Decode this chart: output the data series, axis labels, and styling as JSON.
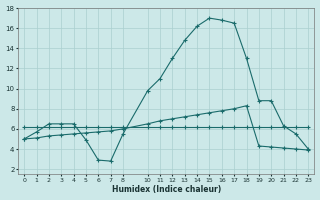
{
  "xlabel": "Humidex (Indice chaleur)",
  "bg_color": "#cce8e8",
  "grid_color": "#aacfcf",
  "line_color": "#1a6b6b",
  "xlim": [
    -0.5,
    23.5
  ],
  "ylim": [
    1.5,
    18.0
  ],
  "yticks": [
    2,
    4,
    6,
    8,
    10,
    12,
    14,
    16,
    18
  ],
  "xticks": [
    0,
    1,
    2,
    3,
    4,
    5,
    6,
    7,
    8,
    10,
    11,
    12,
    13,
    14,
    15,
    16,
    17,
    18,
    19,
    20,
    21,
    22,
    23
  ],
  "x": [
    0,
    1,
    2,
    3,
    4,
    5,
    6,
    7,
    8,
    10,
    11,
    12,
    13,
    14,
    15,
    16,
    17,
    18,
    19,
    20,
    21,
    22,
    23
  ],
  "y_main": [
    5.0,
    5.7,
    6.5,
    6.5,
    6.5,
    4.9,
    2.9,
    2.8,
    5.5,
    9.8,
    11.0,
    13.0,
    14.8,
    16.2,
    17.0,
    16.8,
    16.5,
    13.0,
    8.8,
    8.8,
    6.3,
    5.5,
    4.0
  ],
  "y_flat": [
    6.2,
    6.2,
    6.2,
    6.2,
    6.2,
    6.2,
    6.2,
    6.2,
    6.2,
    6.2,
    6.2,
    6.2,
    6.2,
    6.2,
    6.2,
    6.2,
    6.2,
    6.2,
    6.2,
    6.2,
    6.2,
    6.2,
    6.2
  ],
  "y_slow": [
    5.0,
    5.1,
    5.3,
    5.4,
    5.5,
    5.6,
    5.7,
    5.8,
    6.0,
    6.5,
    6.8,
    7.0,
    7.2,
    7.4,
    7.6,
    7.8,
    8.0,
    8.3,
    4.3,
    4.2,
    4.1,
    4.0,
    3.9
  ]
}
